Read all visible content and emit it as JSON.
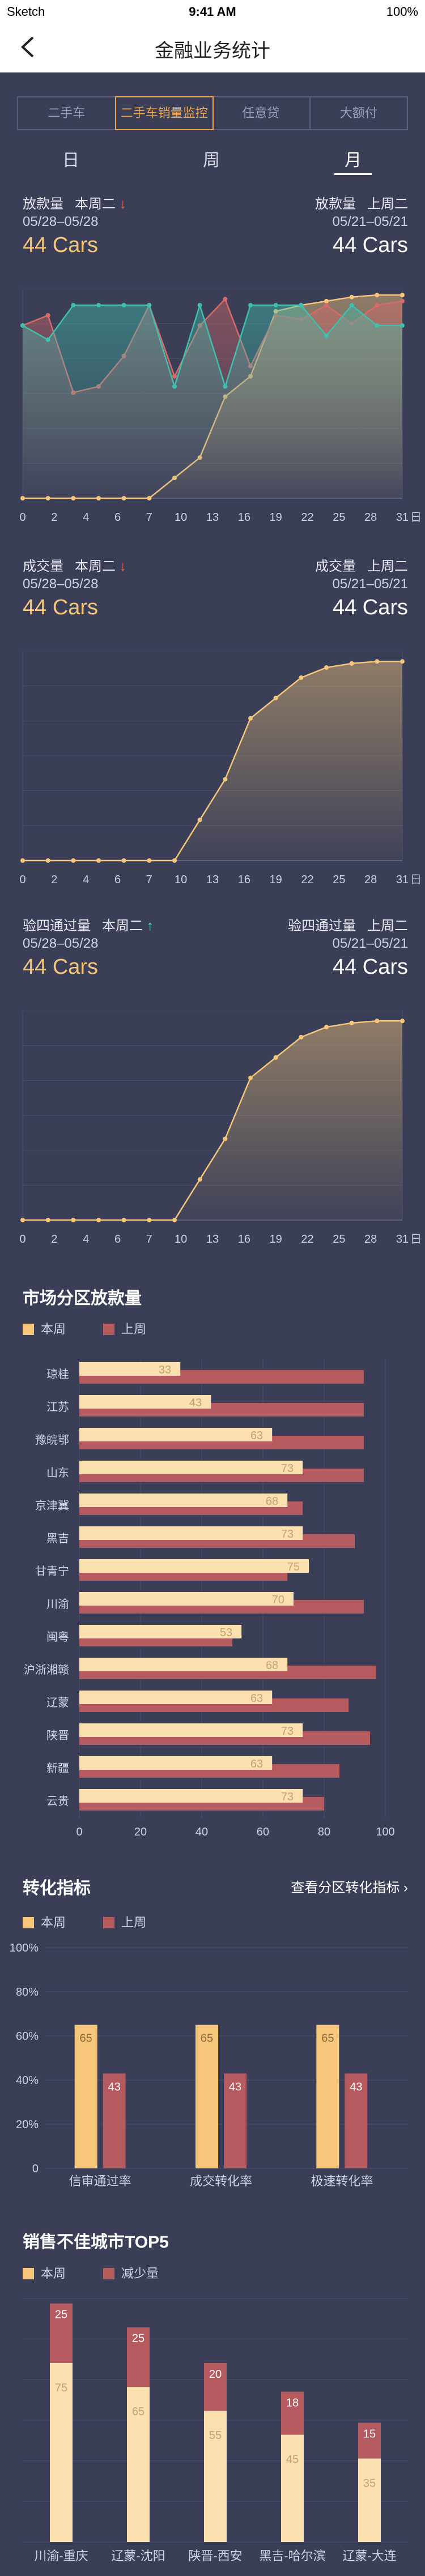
{
  "status": {
    "carrier": "Sketch",
    "time": "9:41 AM",
    "battery": "100%"
  },
  "nav": {
    "title": "金融业务统计",
    "back_icon": "chevron-left-icon"
  },
  "tabs": [
    {
      "label": "二手车",
      "active": false
    },
    {
      "label": "二手车销量监控",
      "active": true
    },
    {
      "label": "任意贷",
      "active": false
    },
    {
      "label": "大额付",
      "active": false
    }
  ],
  "period": {
    "day": "日",
    "week": "周",
    "month": "月",
    "selected": "月"
  },
  "metrics": [
    {
      "label": "放款量",
      "day": "本周二",
      "trend": "down",
      "date": "05/28–05/28",
      "value": "44 Cars",
      "cmp_label": "放款量",
      "cmp_day": "上周二",
      "cmp_date": "05/21–05/21",
      "cmp_value": "44 Cars"
    },
    {
      "label": "成交量",
      "day": "本周二",
      "trend": "down",
      "date": "05/28–05/28",
      "value": "44 Cars",
      "cmp_label": "成交量",
      "cmp_day": "上周二",
      "cmp_date": "05/21–05/21",
      "cmp_value": "44 Cars"
    },
    {
      "label": "验四通过量",
      "day": "本周二",
      "trend": "up",
      "date": "05/28–05/28",
      "value": "44 Cars",
      "cmp_label": "验四通过量",
      "cmp_day": "上周二",
      "cmp_date": "05/21–05/21",
      "cmp_value": "44 Cars"
    }
  ],
  "chart_data": [
    {
      "type": "area",
      "x_ticks": [
        "0",
        "2",
        "4",
        "6",
        "7",
        "10",
        "13",
        "16",
        "19",
        "22",
        "25",
        "28",
        "31"
      ],
      "x_unit": "日",
      "series": [
        {
          "color": "#f6c77a",
          "values": [
            0,
            0,
            0,
            0,
            0,
            0,
            10,
            20,
            50,
            60,
            92,
            95,
            97,
            99,
            100,
            100
          ]
        },
        {
          "color": "#d96a6a",
          "values": [
            85,
            90,
            52,
            55,
            70,
            95,
            60,
            85,
            98,
            65,
            90,
            88,
            95,
            86,
            95,
            97
          ]
        },
        {
          "color": "#3fbfae",
          "values": [
            85,
            78,
            95,
            95,
            95,
            95,
            55,
            95,
            55,
            95,
            95,
            95,
            80,
            95,
            85,
            85
          ]
        }
      ],
      "ylim": [
        0,
        100
      ]
    },
    {
      "type": "area",
      "x_ticks": [
        "0",
        "2",
        "4",
        "6",
        "7",
        "10",
        "13",
        "16",
        "19",
        "22",
        "25",
        "28",
        "31"
      ],
      "x_unit": "日",
      "series": [
        {
          "color": "#f6c77a",
          "values": [
            0,
            0,
            0,
            0,
            0,
            0,
            0,
            20,
            40,
            70,
            80,
            90,
            95,
            97,
            98,
            98
          ]
        }
      ],
      "ylim": [
        0,
        100
      ]
    },
    {
      "type": "area",
      "x_ticks": [
        "0",
        "2",
        "4",
        "6",
        "7",
        "10",
        "13",
        "16",
        "19",
        "22",
        "25",
        "28",
        "31"
      ],
      "x_unit": "日",
      "series": [
        {
          "color": "#f6c77a",
          "values": [
            0,
            0,
            0,
            0,
            0,
            0,
            0,
            20,
            40,
            70,
            80,
            90,
            95,
            97,
            98,
            98
          ]
        }
      ],
      "ylim": [
        0,
        100
      ]
    },
    {
      "type": "bar",
      "title": "市场分区放款量",
      "legend": [
        "本周",
        "上周"
      ],
      "categories": [
        "琼桂",
        "江苏",
        "豫皖鄂",
        "山东",
        "京津冀",
        "黑吉",
        "甘青宁",
        "川渝",
        "闽粤",
        "沪浙湘赣",
        "辽蒙",
        "陕晋",
        "新疆",
        "云贵"
      ],
      "series": [
        {
          "name": "本周",
          "values": [
            33,
            43,
            63,
            73,
            68,
            73,
            75,
            70,
            53,
            68,
            63,
            73,
            63,
            73
          ]
        },
        {
          "name": "上周",
          "values": [
            93,
            93,
            93,
            93,
            73,
            90,
            68,
            93,
            50,
            97,
            88,
            95,
            85,
            80
          ]
        }
      ],
      "xlim": [
        0,
        100
      ],
      "x_ticks": [
        "0",
        "20",
        "40",
        "60",
        "80",
        "100"
      ]
    },
    {
      "type": "bar",
      "title": "转化指标",
      "legend": [
        "本周",
        "上周"
      ],
      "categories": [
        "信审通过率",
        "成交转化率",
        "极速转化率"
      ],
      "series": [
        {
          "name": "本周",
          "values": [
            65,
            65,
            65
          ]
        },
        {
          "name": "上周",
          "values": [
            43,
            43,
            43
          ]
        }
      ],
      "ylim": [
        0,
        100
      ],
      "y_ticks": [
        "0",
        "20%",
        "40%",
        "60%",
        "80%",
        "100%"
      ]
    },
    {
      "type": "bar",
      "title": "销售不佳城市TOP5",
      "legend": [
        "本周",
        "减少量"
      ],
      "categories": [
        "川渝-重庆",
        "辽蒙-沈阳",
        "陕晋-西安",
        "黑吉-哈尔滨",
        "辽蒙-大连"
      ],
      "series": [
        {
          "name": "本周",
          "values": [
            75,
            65,
            55,
            45,
            35
          ]
        },
        {
          "name": "减少量",
          "values": [
            25,
            25,
            20,
            18,
            15
          ]
        }
      ],
      "ylim": [
        0,
        100
      ]
    }
  ],
  "sections": {
    "market": {
      "title": "市场分区放款量",
      "legend_this": "本周",
      "legend_last": "上周"
    },
    "conversion": {
      "title": "转化指标",
      "legend_this": "本周",
      "legend_last": "上周",
      "link": "查看分区转化指标",
      "link_icon": "chevron-right-icon"
    },
    "worst": {
      "title": "销售不佳城市TOP5",
      "legend_this": "本周",
      "legend_last": "减少量"
    }
  },
  "colors": {
    "bg": "#3a3e57",
    "accent": "#f0a64a",
    "gold": "#f6c77a",
    "red": "#b55a5e",
    "teal": "#3fbfae",
    "down": "#f0604a",
    "up": "#5de0c4"
  }
}
